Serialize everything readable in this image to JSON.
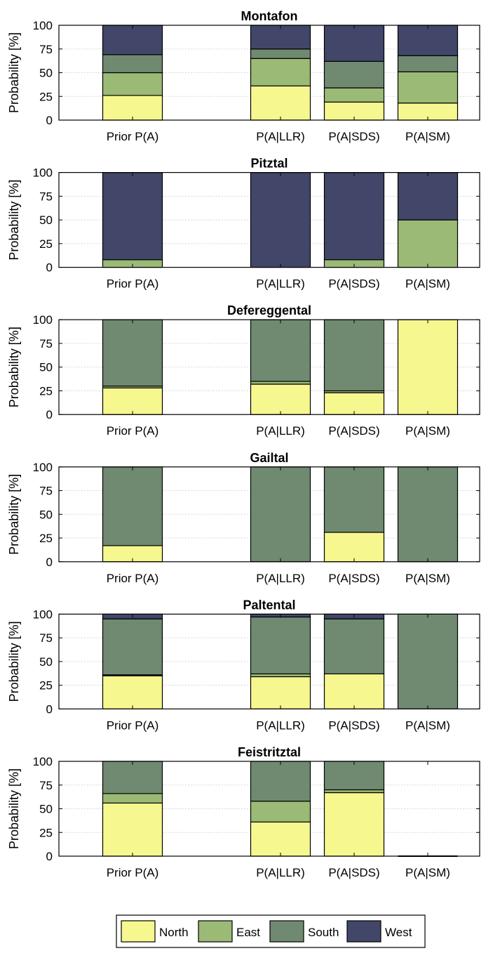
{
  "colors": {
    "North": "#f7f78f",
    "East": "#9bba75",
    "South": "#6f8a70",
    "West": "#424769"
  },
  "shared": {
    "ylabel": "Probability [%]",
    "yticks": [
      "0",
      "25",
      "50",
      "75",
      "100"
    ],
    "ylim": [
      0,
      100
    ],
    "grid": "horizontal, dotted",
    "categories": [
      "Prior P(A)",
      "P(A|LLR)",
      "P(A|SDS)",
      "P(A|SM)"
    ]
  },
  "legend": {
    "placement": "bottom-center",
    "entries": [
      "North",
      "East",
      "South",
      "West"
    ]
  },
  "chart_data": [
    {
      "type": "bar",
      "stacked": true,
      "title": "Montafon",
      "categories": [
        "Prior P(A)",
        "P(A|LLR)",
        "P(A|SDS)",
        "P(A|SM)"
      ],
      "series": [
        {
          "name": "North",
          "values": [
            26,
            36,
            19,
            18
          ]
        },
        {
          "name": "East",
          "values": [
            24,
            29,
            15,
            33
          ]
        },
        {
          "name": "South",
          "values": [
            19,
            10,
            28,
            17
          ]
        },
        {
          "name": "West",
          "values": [
            31,
            25,
            38,
            32
          ]
        }
      ],
      "ylabel": "Probability [%]",
      "ylim": [
        0,
        100
      ]
    },
    {
      "type": "bar",
      "stacked": true,
      "title": "Pitztal",
      "categories": [
        "Prior P(A)",
        "P(A|LLR)",
        "P(A|SDS)",
        "P(A|SM)"
      ],
      "series": [
        {
          "name": "North",
          "values": [
            0,
            0,
            0,
            0
          ]
        },
        {
          "name": "East",
          "values": [
            8,
            0,
            8,
            50
          ]
        },
        {
          "name": "South",
          "values": [
            0,
            0,
            0,
            0
          ]
        },
        {
          "name": "West",
          "values": [
            92,
            100,
            92,
            50
          ]
        }
      ],
      "ylabel": "Probability [%]",
      "ylim": [
        0,
        100
      ]
    },
    {
      "type": "bar",
      "stacked": true,
      "title": "Defereggental",
      "categories": [
        "Prior P(A)",
        "P(A|LLR)",
        "P(A|SDS)",
        "P(A|SM)"
      ],
      "series": [
        {
          "name": "North",
          "values": [
            28,
            32,
            23,
            100
          ]
        },
        {
          "name": "East",
          "values": [
            2,
            3,
            2,
            0
          ]
        },
        {
          "name": "South",
          "values": [
            70,
            65,
            75,
            0
          ]
        },
        {
          "name": "West",
          "values": [
            0,
            0,
            0,
            0
          ]
        }
      ],
      "ylabel": "Probability [%]",
      "ylim": [
        0,
        100
      ]
    },
    {
      "type": "bar",
      "stacked": true,
      "title": "Gailtal",
      "categories": [
        "Prior P(A)",
        "P(A|LLR)",
        "P(A|SDS)",
        "P(A|SM)"
      ],
      "series": [
        {
          "name": "North",
          "values": [
            17,
            0,
            31,
            0
          ]
        },
        {
          "name": "East",
          "values": [
            0,
            0,
            0,
            0
          ]
        },
        {
          "name": "South",
          "values": [
            83,
            100,
            69,
            100
          ]
        },
        {
          "name": "West",
          "values": [
            0,
            0,
            0,
            0
          ]
        }
      ],
      "ylabel": "Probability [%]",
      "ylim": [
        0,
        100
      ]
    },
    {
      "type": "bar",
      "stacked": true,
      "title": "Paltental",
      "categories": [
        "Prior P(A)",
        "P(A|LLR)",
        "P(A|SDS)",
        "P(A|SM)"
      ],
      "series": [
        {
          "name": "North",
          "values": [
            35,
            34,
            37,
            0
          ]
        },
        {
          "name": "East",
          "values": [
            1,
            3,
            0,
            0
          ]
        },
        {
          "name": "South",
          "values": [
            59,
            60,
            58,
            100
          ]
        },
        {
          "name": "West",
          "values": [
            5,
            3,
            5,
            0
          ]
        }
      ],
      "ylabel": "Probability [%]",
      "ylim": [
        0,
        100
      ]
    },
    {
      "type": "bar",
      "stacked": true,
      "title": "Feistritztal",
      "categories": [
        "Prior P(A)",
        "P(A|LLR)",
        "P(A|SDS)",
        "P(A|SM)"
      ],
      "series": [
        {
          "name": "North",
          "values": [
            56,
            36,
            67,
            0
          ]
        },
        {
          "name": "East",
          "values": [
            10,
            22,
            3,
            0
          ]
        },
        {
          "name": "South",
          "values": [
            34,
            42,
            30,
            0
          ]
        },
        {
          "name": "West",
          "values": [
            0,
            0,
            0,
            0
          ]
        }
      ],
      "ylabel": "Probability [%]",
      "ylim": [
        0,
        100
      ]
    }
  ]
}
